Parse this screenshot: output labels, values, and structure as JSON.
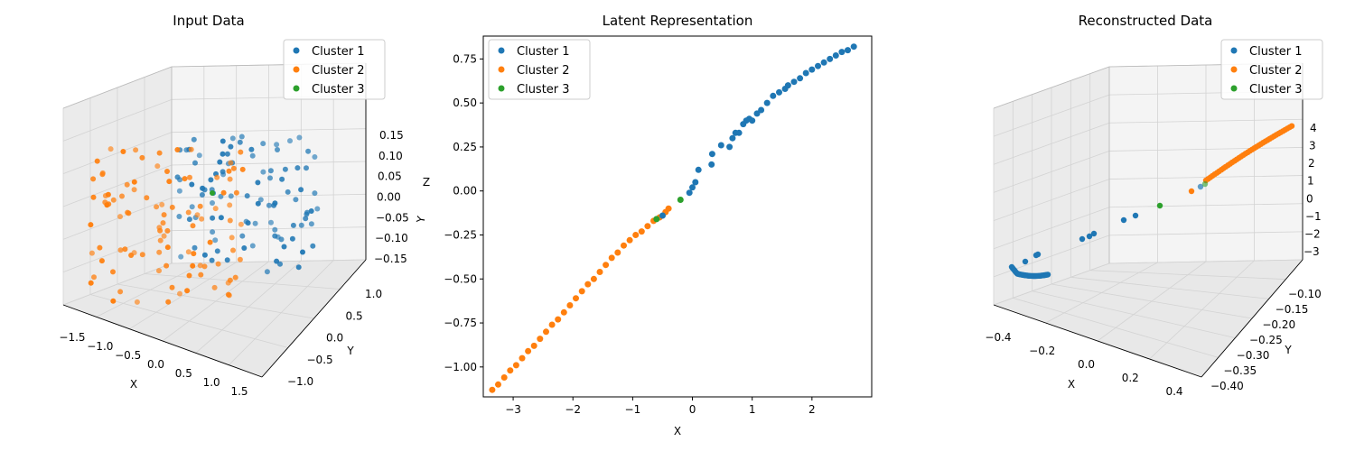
{
  "colors": {
    "cluster1": "#1f77b4",
    "cluster2": "#ff7f0e",
    "cluster3": "#2ca02c"
  },
  "chart_data": [
    {
      "type": "scatter",
      "projection": "3d",
      "title": "Input Data",
      "xlabel": "X",
      "ylabel": "Y",
      "zlabel": "Z",
      "x_ticks": [
        "−1.5",
        "−1.0",
        "−0.5",
        "0.0",
        "0.5",
        "1.0",
        "1.5"
      ],
      "y_ticks": [
        "−1.0",
        "−0.5",
        "0.0",
        "0.5",
        "1.0"
      ],
      "z_ticks": [
        "0.15",
        "0.10",
        "0.05",
        "0.00",
        "−0.05",
        "−0.10",
        "−0.15"
      ],
      "xlim": [
        -1.6,
        1.6
      ],
      "ylim": [
        -1.2,
        1.2
      ],
      "zlim": [
        -0.18,
        0.18
      ],
      "legend": {
        "placement": "top-right",
        "entries": [
          "Cluster 1",
          "Cluster 2",
          "Cluster 3"
        ]
      },
      "grid": true,
      "series": [
        {
          "name": "Cluster 1",
          "color": "#1f77b4",
          "count": 100,
          "approx_distribution": "x 0.0..1.5, y -0.7..1.0, z -0.15..0.16 (right/back region)"
        },
        {
          "name": "Cluster 2",
          "color": "#ff7f0e",
          "count": 100,
          "approx_distribution": "x -1.5..0.3, y -1.0..0.6, z -0.15..0.16 (left/front region)"
        },
        {
          "name": "Cluster 3",
          "color": "#2ca02c",
          "points": [
            [
              0.1,
              0.6,
              0.0
            ]
          ]
        }
      ]
    },
    {
      "type": "scatter",
      "title": "Latent Representation",
      "xlabel": "X",
      "ylabel": "",
      "x_ticks": [
        "−3",
        "−2",
        "−1",
        "0",
        "1",
        "2"
      ],
      "y_ticks": [
        "0.75",
        "0.50",
        "0.25",
        "0.00",
        "−0.25",
        "−0.50",
        "−0.75",
        "−1.00"
      ],
      "xlim": [
        -3.5,
        3.0
      ],
      "ylim": [
        -1.17,
        0.88
      ],
      "legend": {
        "placement": "top-left",
        "entries": [
          "Cluster 1",
          "Cluster 2",
          "Cluster 3"
        ]
      },
      "grid": false,
      "series": [
        {
          "name": "Cluster 1",
          "color": "#1f77b4",
          "points": [
            [
              -0.5,
              -0.14
            ],
            [
              -0.05,
              -0.01
            ],
            [
              0.0,
              0.02
            ],
            [
              0.05,
              0.05
            ],
            [
              0.1,
              0.12
            ],
            [
              0.32,
              0.15
            ],
            [
              0.33,
              0.21
            ],
            [
              0.48,
              0.26
            ],
            [
              0.62,
              0.25
            ],
            [
              0.67,
              0.3
            ],
            [
              0.72,
              0.33
            ],
            [
              0.78,
              0.33
            ],
            [
              0.85,
              0.38
            ],
            [
              0.9,
              0.4
            ],
            [
              0.95,
              0.41
            ],
            [
              1.0,
              0.4
            ],
            [
              1.08,
              0.44
            ],
            [
              1.15,
              0.46
            ],
            [
              1.25,
              0.5
            ],
            [
              1.35,
              0.54
            ],
            [
              1.45,
              0.56
            ],
            [
              1.55,
              0.58
            ],
            [
              1.6,
              0.6
            ],
            [
              1.7,
              0.62
            ],
            [
              1.8,
              0.64
            ],
            [
              1.9,
              0.67
            ],
            [
              2.0,
              0.69
            ],
            [
              2.1,
              0.71
            ],
            [
              2.2,
              0.73
            ],
            [
              2.3,
              0.75
            ],
            [
              2.4,
              0.77
            ],
            [
              2.5,
              0.79
            ],
            [
              2.6,
              0.8
            ],
            [
              2.7,
              0.82
            ]
          ]
        },
        {
          "name": "Cluster 2",
          "color": "#ff7f0e",
          "points": [
            [
              -3.35,
              -1.13
            ],
            [
              -3.25,
              -1.1
            ],
            [
              -3.15,
              -1.06
            ],
            [
              -3.05,
              -1.02
            ],
            [
              -2.95,
              -0.99
            ],
            [
              -2.85,
              -0.95
            ],
            [
              -2.75,
              -0.91
            ],
            [
              -2.65,
              -0.88
            ],
            [
              -2.55,
              -0.84
            ],
            [
              -2.45,
              -0.8
            ],
            [
              -2.35,
              -0.76
            ],
            [
              -2.25,
              -0.73
            ],
            [
              -2.15,
              -0.69
            ],
            [
              -2.05,
              -0.65
            ],
            [
              -1.95,
              -0.61
            ],
            [
              -1.85,
              -0.57
            ],
            [
              -1.75,
              -0.53
            ],
            [
              -1.65,
              -0.5
            ],
            [
              -1.55,
              -0.46
            ],
            [
              -1.45,
              -0.42
            ],
            [
              -1.35,
              -0.38
            ],
            [
              -1.25,
              -0.35
            ],
            [
              -1.15,
              -0.31
            ],
            [
              -1.05,
              -0.28
            ],
            [
              -0.95,
              -0.25
            ],
            [
              -0.85,
              -0.23
            ],
            [
              -0.75,
              -0.2
            ],
            [
              -0.65,
              -0.17
            ],
            [
              -0.55,
              -0.15
            ],
            [
              -0.45,
              -0.12
            ],
            [
              -0.4,
              -0.1
            ]
          ]
        },
        {
          "name": "Cluster 3",
          "color": "#2ca02c",
          "points": [
            [
              -0.6,
              -0.16
            ],
            [
              -0.2,
              -0.05
            ]
          ]
        }
      ]
    },
    {
      "type": "scatter",
      "projection": "3d",
      "title": "Reconstructed Data",
      "xlabel": "X",
      "ylabel": "Y",
      "zlabel": "",
      "x_ticks": [
        "−0.4",
        "−0.2",
        "0.0",
        "0.2",
        "0.4"
      ],
      "y_ticks": [
        "−0.10",
        "−0.15",
        "−0.20",
        "−0.25",
        "−0.30",
        "−0.35",
        "−0.40"
      ],
      "z_ticks": [
        "4",
        "3",
        "2",
        "1",
        "0",
        "−1",
        "−2",
        "−3"
      ],
      "xlim": [
        -0.45,
        0.45
      ],
      "ylim": [
        -0.42,
        -0.08
      ],
      "zlim": [
        -3.5,
        4.3
      ],
      "legend": {
        "placement": "top-right",
        "entries": [
          "Cluster 1",
          "Cluster 2",
          "Cluster 3"
        ]
      },
      "grid": true,
      "series": [
        {
          "name": "Cluster 1",
          "color": "#1f77b4",
          "approx_distribution": "dense curve at x≈-0.4..-0.2, y≈-0.40..-0.35, z≈-3; few points toward (0,-0.25,0)"
        },
        {
          "name": "Cluster 2",
          "color": "#ff7f0e",
          "approx_distribution": "curve rising from (0.1,-0.2,0) to (0.4,-0.1,4)"
        },
        {
          "name": "Cluster 3",
          "color": "#2ca02c",
          "points": [
            [
              0.0,
              -0.3,
              0.0
            ],
            [
              0.05,
              -0.2,
              0.8
            ]
          ]
        }
      ]
    }
  ]
}
